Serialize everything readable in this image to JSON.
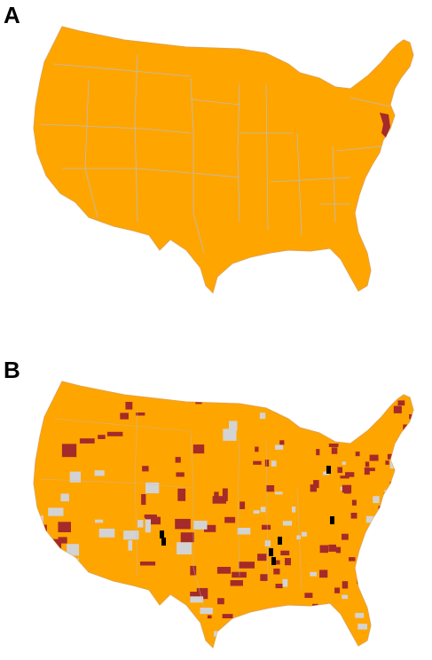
{
  "panels": [
    {
      "label": "A"
    },
    {
      "label": "B"
    }
  ],
  "colors": {
    "primary": "#ffa500",
    "highlight": "#a52a2a",
    "no_data": "#d3d3d3",
    "extreme": "#000000",
    "border": "#bdbdbd"
  },
  "panel_a": {
    "highlighted_region_name": "New Jersey"
  },
  "panel_b": {
    "categories": [
      "orange",
      "dark-red",
      "gray",
      "black"
    ]
  }
}
